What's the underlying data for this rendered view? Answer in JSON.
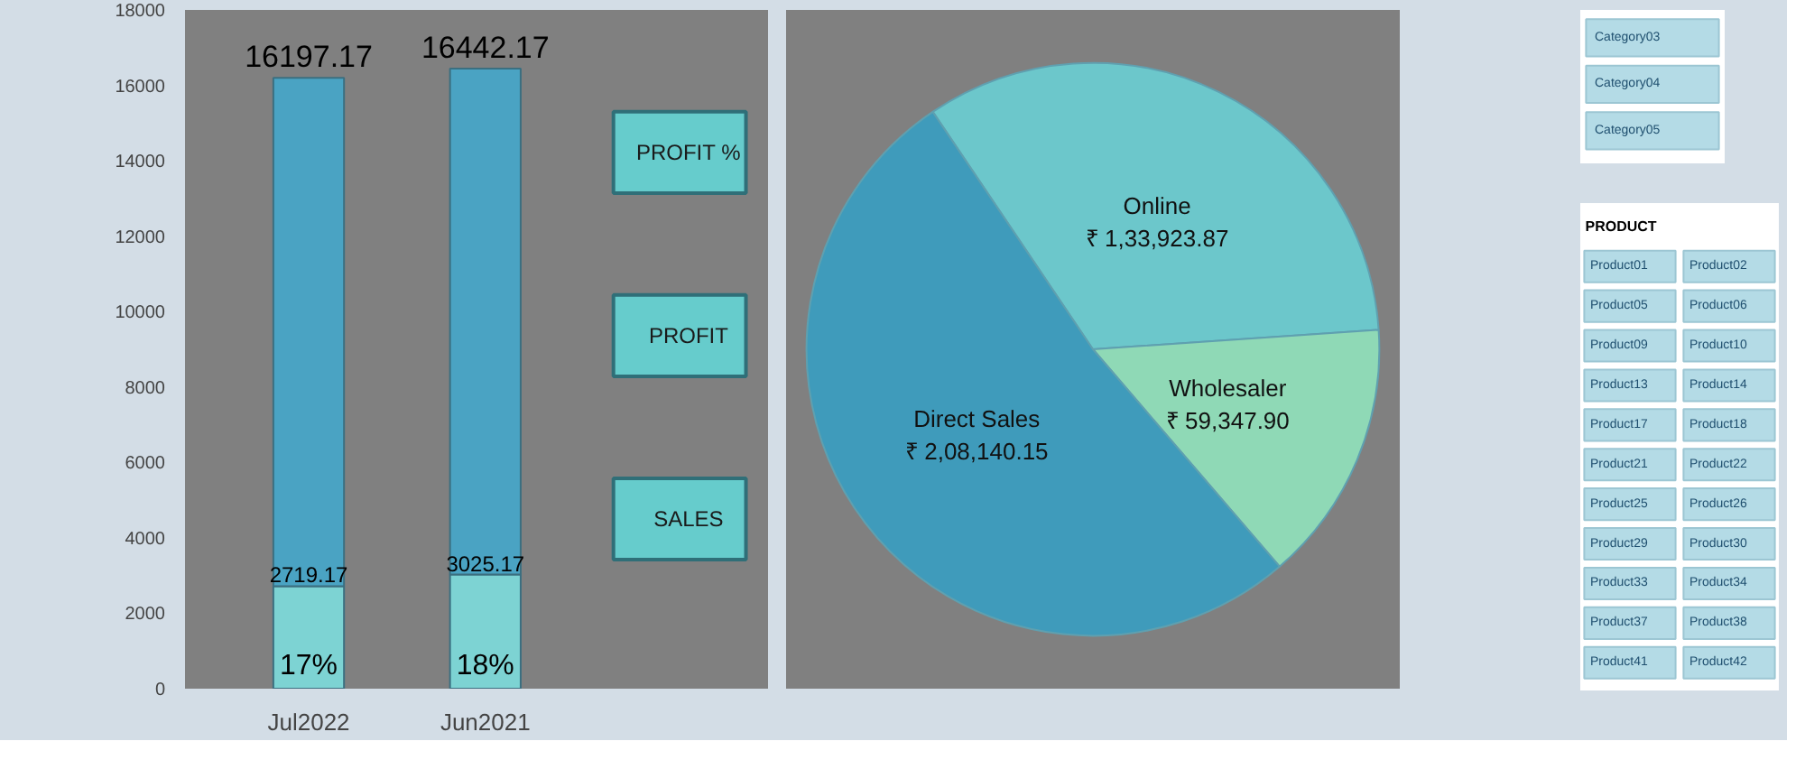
{
  "chart_data": [
    {
      "type": "bar",
      "categories": [
        "Jul2022",
        "Jun2021"
      ],
      "ylim": [
        0,
        18000
      ],
      "yticks": [
        0,
        2000,
        4000,
        6000,
        8000,
        10000,
        12000,
        14000,
        16000,
        18000
      ],
      "grid": false,
      "stacked": true,
      "totals": [
        "16197.17",
        "16442.17"
      ],
      "series": [
        {
          "color": "#7dd3d3",
          "values": [
            2719.17,
            3025.17
          ],
          "value_labels": [
            "2719.17",
            "3025.17"
          ]
        },
        {
          "color": "#4aa3c3",
          "values": [
            13478.0,
            13417.0
          ]
        }
      ],
      "annotations": [
        "PROFIT %",
        "PROFIT",
        "SALES",
        "17%",
        "18%"
      ]
    },
    {
      "type": "pie",
      "categories": [
        "Online",
        "Wholesaler",
        "Direct Sales"
      ],
      "values": [
        133923.87,
        59347.9,
        208140.15
      ],
      "colors": [
        "#6cc7cb",
        "#8fd9b6",
        "#3f9bbb"
      ],
      "value_labels": [
        "₹ 1,33,923.87",
        "₹ 59,347.90",
        "₹ 2,08,140.15"
      ]
    },
    {
      "type": "other",
      "annotations": [
        "Category03",
        "Category04",
        "Category05"
      ]
    },
    {
      "type": "other",
      "title": "PRODUCT",
      "annotations": [
        "Product01",
        "Product02",
        "Product05",
        "Product06",
        "Product09",
        "Product10",
        "Product13",
        "Product14",
        "Product17",
        "Product18",
        "Product21",
        "Product22",
        "Product25",
        "Product26",
        "Product29",
        "Product30",
        "Product33",
        "Product34",
        "Product37",
        "Product38",
        "Product41",
        "Product42"
      ]
    }
  ]
}
